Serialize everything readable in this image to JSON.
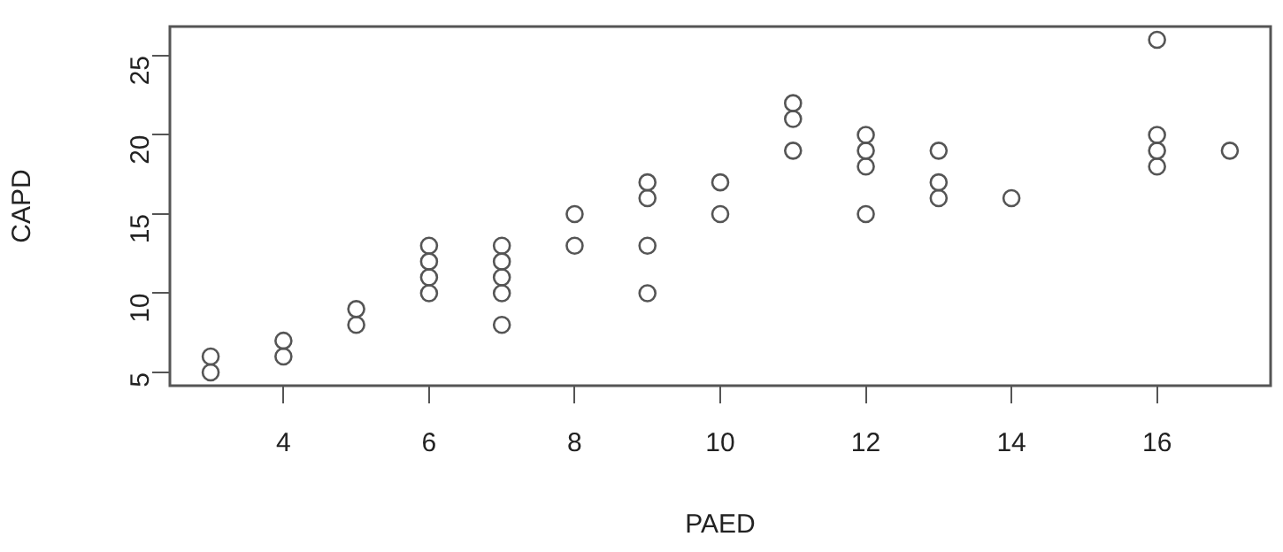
{
  "chart_data": {
    "type": "scatter",
    "xlabel": "PAED",
    "ylabel": "CAPD",
    "x": [
      3,
      3,
      4,
      4,
      5,
      5,
      6,
      6,
      6,
      6,
      7,
      7,
      7,
      7,
      7,
      8,
      8,
      9,
      9,
      9,
      9,
      10,
      10,
      11,
      11,
      11,
      12,
      12,
      12,
      12,
      13,
      13,
      13,
      14,
      16,
      16,
      16,
      16,
      17
    ],
    "values": [
      5,
      6,
      6,
      7,
      8,
      9,
      10,
      11,
      12,
      13,
      8,
      10,
      11,
      12,
      13,
      13,
      15,
      10,
      13,
      16,
      17,
      15,
      17,
      19,
      21,
      22,
      15,
      18,
      19,
      20,
      16,
      17,
      19,
      16,
      18,
      19,
      20,
      26,
      19
    ],
    "color": "#555555",
    "marker": "circle",
    "grid": false,
    "legend": false,
    "xlim": [
      2.44,
      17.56
    ],
    "xticks": [
      4,
      6,
      8,
      10,
      12,
      14,
      16
    ],
    "ylim": [
      4.16,
      26.84
    ],
    "yticks": [
      5,
      10,
      15,
      20,
      25
    ]
  }
}
